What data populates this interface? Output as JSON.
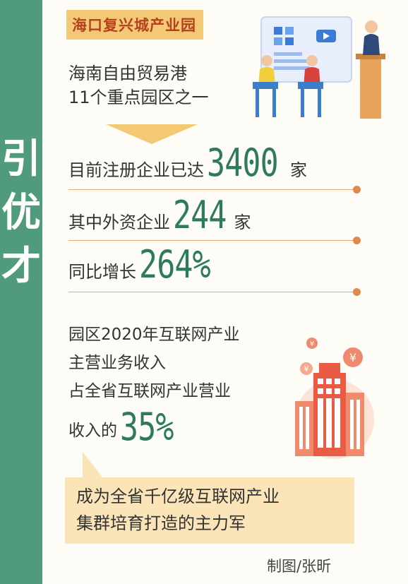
{
  "sidebar": {
    "chars": [
      "引",
      "优",
      "才"
    ]
  },
  "badge": "海口复兴城产业园",
  "subtitle": [
    "海南自由贸易港",
    "11个重点园区之一"
  ],
  "stats": [
    {
      "prefix": "目前注册企业已达",
      "value": "3400",
      "suffix": "家"
    },
    {
      "prefix": "其中外资企业",
      "value": "244",
      "suffix": "家"
    },
    {
      "prefix": "同比增长",
      "value": "264%",
      "suffix": ""
    }
  ],
  "revenue": {
    "lines": [
      "园区2020年互联网产业",
      "主营业务收入",
      "占全省互联网产业营业"
    ],
    "last_prefix": "收入的",
    "value": "35%"
  },
  "bubble": [
    "成为全省千亿级互联网产业",
    "集群培育打造的主力军"
  ],
  "credit": "制图/张昕",
  "colors": {
    "green": "#4f9b7c",
    "value_green": "#2e7a5e",
    "yellow": "#f3c975",
    "red": "#b5411e",
    "orange": "#de8a4c"
  },
  "icons": [
    "meeting-illustration",
    "office-building-illustration",
    "yen-coin-icon"
  ]
}
